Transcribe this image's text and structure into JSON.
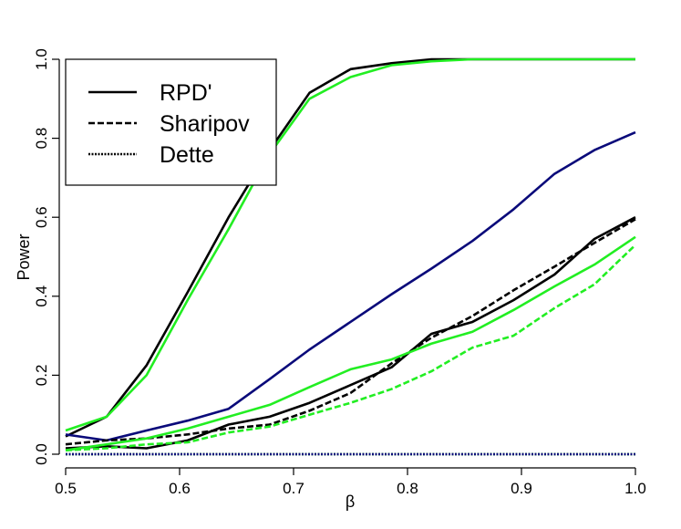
{
  "chart_data": {
    "type": "line",
    "title": "",
    "xlabel": "β",
    "ylabel": "Power",
    "xlim": [
      0.5,
      1.0
    ],
    "ylim": [
      0.0,
      1.0
    ],
    "x_ticks": [
      "0.5",
      "0.6",
      "0.7",
      "0.8",
      "0.9",
      "1.0"
    ],
    "y_ticks": [
      "0.0",
      "0.2",
      "0.4",
      "0.6",
      "0.8",
      "1.0"
    ],
    "grid": false,
    "legend_placement": "top-left",
    "legend": [
      {
        "label": "RPD'",
        "dash": "solid"
      },
      {
        "label": "Sharipov",
        "dash": "dashed"
      },
      {
        "label": "Dette",
        "dash": "dotted"
      }
    ],
    "colors": {
      "black": "#000000",
      "green": "#22ee22",
      "navy": "#0a0a7a"
    },
    "x": [
      0.5,
      0.536,
      0.571,
      0.607,
      0.643,
      0.679,
      0.714,
      0.75,
      0.786,
      0.821,
      0.857,
      0.893,
      0.929,
      0.964,
      1.0
    ],
    "series": [
      {
        "color": "black",
        "dash": "solid",
        "values": [
          0.045,
          0.095,
          0.225,
          0.41,
          0.6,
          0.77,
          0.915,
          0.975,
          0.99,
          1.0,
          1.0,
          1.0,
          1.0,
          1.0,
          1.0
        ]
      },
      {
        "color": "green",
        "dash": "solid",
        "values": [
          0.06,
          0.095,
          0.2,
          0.39,
          0.57,
          0.76,
          0.9,
          0.955,
          0.985,
          0.995,
          1.0,
          1.0,
          1.0,
          1.0,
          1.0
        ]
      },
      {
        "color": "navy",
        "dash": "solid",
        "values": [
          0.05,
          0.035,
          0.06,
          0.085,
          0.115,
          0.19,
          0.265,
          0.335,
          0.405,
          0.47,
          0.54,
          0.62,
          0.71,
          0.77,
          0.815
        ]
      },
      {
        "color": "black",
        "dash": "solid",
        "values": [
          0.015,
          0.02,
          0.015,
          0.035,
          0.075,
          0.095,
          0.13,
          0.175,
          0.22,
          0.305,
          0.335,
          0.39,
          0.455,
          0.545,
          0.6
        ]
      },
      {
        "color": "black",
        "dash": "dashed",
        "values": [
          0.025,
          0.035,
          0.04,
          0.05,
          0.065,
          0.075,
          0.11,
          0.155,
          0.23,
          0.295,
          0.35,
          0.415,
          0.475,
          0.535,
          0.595
        ]
      },
      {
        "color": "green",
        "dash": "solid",
        "values": [
          0.01,
          0.025,
          0.04,
          0.065,
          0.095,
          0.125,
          0.17,
          0.215,
          0.24,
          0.28,
          0.31,
          0.365,
          0.425,
          0.48,
          0.55
        ]
      },
      {
        "color": "green",
        "dash": "dashed",
        "values": [
          0.01,
          0.015,
          0.025,
          0.03,
          0.055,
          0.07,
          0.1,
          0.13,
          0.165,
          0.21,
          0.27,
          0.3,
          0.37,
          0.43,
          0.53
        ]
      },
      {
        "color": "black",
        "dash": "dotted",
        "values": [
          0.0,
          0.0,
          0.0,
          0.0,
          0.0,
          0.0,
          0.0,
          0.0,
          0.0,
          0.0,
          0.0,
          0.0,
          0.0,
          0.0,
          0.0
        ]
      },
      {
        "color": "green",
        "dash": "dotted",
        "values": [
          0.0,
          0.0,
          0.0,
          0.0,
          0.0,
          0.0,
          0.0,
          0.0,
          0.0,
          0.0,
          0.0,
          0.0,
          0.0,
          0.0,
          0.0
        ]
      },
      {
        "color": "navy",
        "dash": "dotted",
        "values": [
          0.0,
          0.0,
          0.0,
          0.0,
          0.0,
          0.0,
          0.0,
          0.0,
          0.0,
          0.0,
          0.0,
          0.0,
          0.0,
          0.0,
          0.0
        ]
      }
    ]
  }
}
